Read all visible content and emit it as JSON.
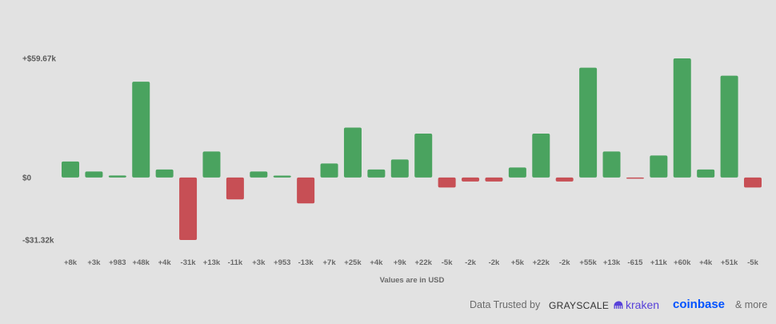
{
  "chart_data": {
    "type": "bar",
    "categories": [
      "+8k",
      "+3k",
      "+983",
      "+48k",
      "+4k",
      "-31k",
      "+13k",
      "-11k",
      "+3k",
      "+953",
      "-13k",
      "+7k",
      "+25k",
      "+4k",
      "+9k",
      "+22k",
      "-5k",
      "-2k",
      "-2k",
      "+5k",
      "+22k",
      "-2k",
      "+55k",
      "+13k",
      "-615",
      "+11k",
      "+60k",
      "+4k",
      "+51k",
      "-5k"
    ],
    "values": [
      8000,
      3000,
      983,
      48000,
      4000,
      -31320,
      13000,
      -11000,
      3000,
      953,
      -13000,
      7000,
      25000,
      4000,
      9000,
      22000,
      -5000,
      -2000,
      -2000,
      5000,
      22000,
      -2000,
      55000,
      13000,
      -615,
      11000,
      59670,
      4000,
      51000,
      -5000
    ],
    "ylim": [
      -31320,
      59670
    ],
    "yticks": [
      {
        "value": 59670,
        "label": "+$59.67k"
      },
      {
        "value": 0,
        "label": "$0"
      },
      {
        "value": -31320,
        "label": "-$31.32k"
      }
    ],
    "xlabel": "Values are in USD",
    "colors": {
      "positive": "#4aa35f",
      "negative": "#c74f55"
    },
    "grid": false
  },
  "footer": {
    "trusted_label": "Data Trusted by",
    "partners": {
      "grayscale": "GRAYSCALE",
      "kraken": "kraken",
      "coinbase": "coinbase"
    },
    "more_label": "& more"
  }
}
